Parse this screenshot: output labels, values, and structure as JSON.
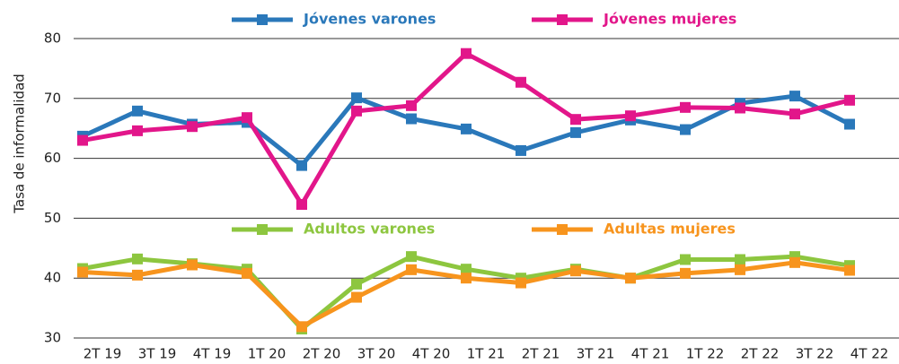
{
  "chart_data": {
    "type": "line",
    "y_label": "Tasa de informalidad",
    "categories": [
      "2T 19",
      "3T 19",
      "4T 19",
      "1T 20",
      "2T 20",
      "3T 20",
      "4T 20",
      "1T 21",
      "2T 21",
      "3T 21",
      "4T 21",
      "1T 22",
      "2T 22",
      "3T 22",
      "4T 22"
    ],
    "series": [
      {
        "name": "Jóvenes varones",
        "color": "#2a78ba",
        "values": [
          63.7,
          67.9,
          65.7,
          66,
          58.8,
          70.1,
          66.6,
          64.9,
          61.3,
          64.3,
          66.4,
          64.8,
          69.2,
          70.4,
          65.7
        ]
      },
      {
        "name": "Jóvenes mujeres",
        "color": "#e2168a",
        "values": [
          63,
          64.6,
          65.3,
          66.8,
          52.3,
          67.9,
          68.8,
          77.5,
          72.7,
          66.5,
          67.1,
          68.5,
          68.4,
          67.4,
          69.7
        ]
      },
      {
        "name": "Adultos varones",
        "color": "#8dc63f",
        "values": [
          41.6,
          43.2,
          42.4,
          41.5,
          31.5,
          39,
          43.6,
          41.5,
          40,
          41.5,
          40,
          43.1,
          43.1,
          43.6,
          42.1
        ]
      },
      {
        "name": "Adultas mujeres",
        "color": "#f7941d",
        "values": [
          41,
          40.5,
          42.2,
          40.8,
          31.9,
          36.8,
          41.4,
          40,
          39.2,
          41.2,
          40,
          40.8,
          41.4,
          42.6,
          41.3
        ]
      }
    ],
    "ylim": [
      30,
      80
    ],
    "yticks": [
      30,
      40,
      50,
      60,
      70,
      80
    ],
    "grid": true
  }
}
